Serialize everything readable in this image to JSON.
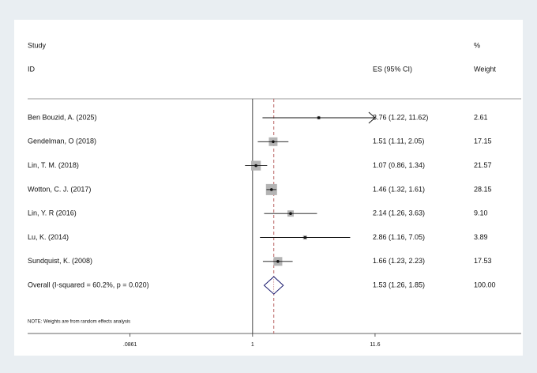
{
  "chart_data": {
    "type": "forest",
    "headers": {
      "study": "Study",
      "id": "ID",
      "es": "ES (95% CI)",
      "pct": "%",
      "weight": "Weight"
    },
    "studies": [
      {
        "name": "Ben Bouzid, A. (2025)",
        "es": 3.76,
        "lo": 1.22,
        "hi": 11.62,
        "ci_label": "3.76 (1.22, 11.62)",
        "weight": 2.61,
        "weight_label": "2.61"
      },
      {
        "name": "Gendelman, O (2018)",
        "es": 1.51,
        "lo": 1.11,
        "hi": 2.05,
        "ci_label": "1.51 (1.11, 2.05)",
        "weight": 17.15,
        "weight_label": "17.15"
      },
      {
        "name": "Lin, T. M. (2018)",
        "es": 1.07,
        "lo": 0.86,
        "hi": 1.34,
        "ci_label": "1.07 (0.86, 1.34)",
        "weight": 21.57,
        "weight_label": "21.57"
      },
      {
        "name": "Wotton, C. J. (2017)",
        "es": 1.46,
        "lo": 1.32,
        "hi": 1.61,
        "ci_label": "1.46 (1.32, 1.61)",
        "weight": 28.15,
        "weight_label": "28.15"
      },
      {
        "name": "Lin, Y. R (2016)",
        "es": 2.14,
        "lo": 1.26,
        "hi": 3.63,
        "ci_label": "2.14 (1.26, 3.63)",
        "weight": 9.1,
        "weight_label": "9.10"
      },
      {
        "name": "Lu, K. (2014)",
        "es": 2.86,
        "lo": 1.16,
        "hi": 7.05,
        "ci_label": "2.86 (1.16, 7.05)",
        "weight": 3.89,
        "weight_label": "3.89"
      },
      {
        "name": "Sundquist, K. (2008)",
        "es": 1.66,
        "lo": 1.23,
        "hi": 2.23,
        "ci_label": "1.66 (1.23, 2.23)",
        "weight": 17.53,
        "weight_label": "17.53"
      }
    ],
    "overall": {
      "name": "Overall  (I-squared = 60.2%, p = 0.020)",
      "es": 1.53,
      "lo": 1.26,
      "hi": 1.85,
      "ci_label": "1.53 (1.26, 1.85)",
      "weight": 100,
      "weight_label": "100.00"
    },
    "note": "NOTE: Weights are from random effects analysis",
    "log_scale": true,
    "null_line": 1,
    "xlim": [
      0.0111,
      216
    ],
    "xticks": [
      {
        "value": 0.0861,
        "label": ".0861"
      },
      1,
      11.6
    ],
    "box_color": "#b4b4b4",
    "line_color": "#111111",
    "diamond_color": "#1a1a6e",
    "overall_line_color": "#b05050"
  }
}
